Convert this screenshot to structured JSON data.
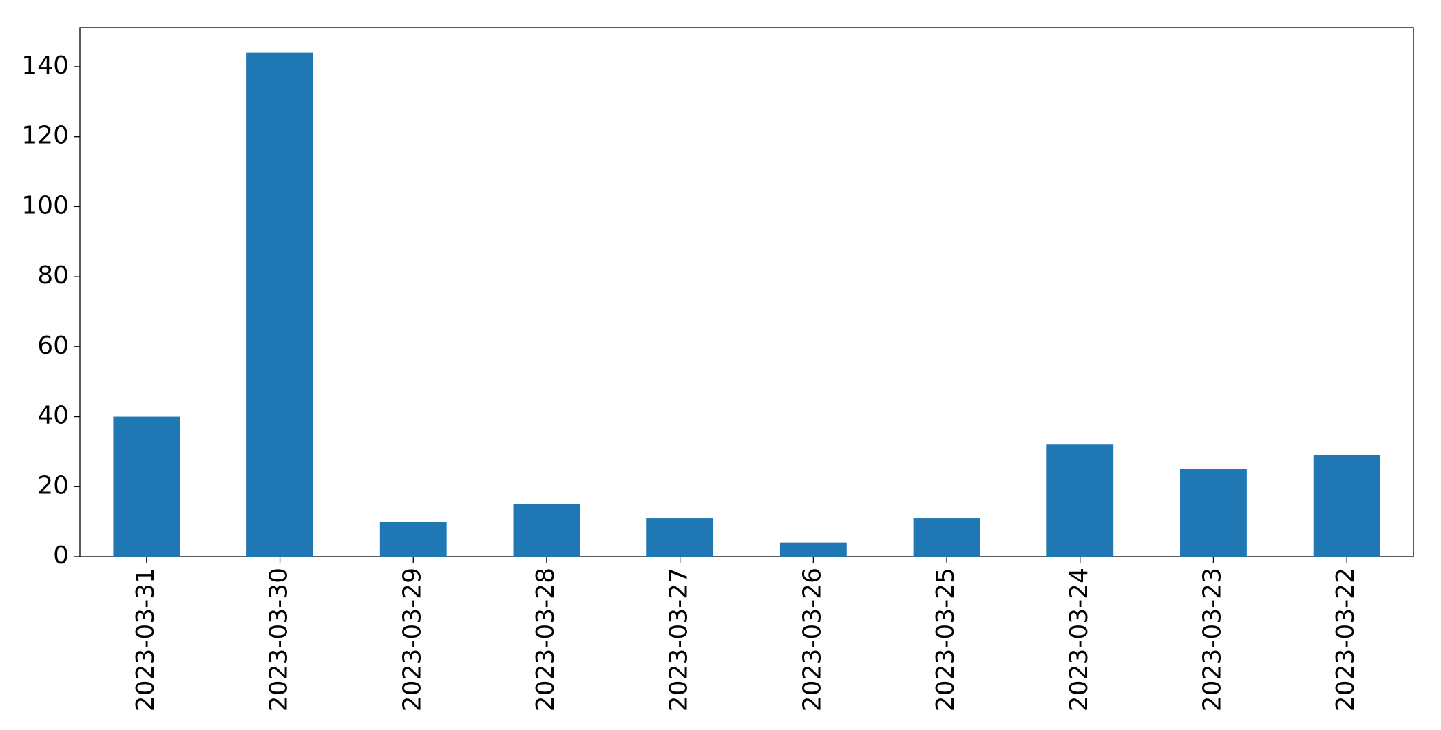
{
  "chart_data": {
    "type": "bar",
    "categories": [
      "2023-03-31",
      "2023-03-30",
      "2023-03-29",
      "2023-03-28",
      "2023-03-27",
      "2023-03-26",
      "2023-03-25",
      "2023-03-24",
      "2023-03-23",
      "2023-03-22"
    ],
    "values": [
      40,
      144,
      10,
      15,
      11,
      4,
      11,
      32,
      25,
      29
    ],
    "color": "#1f77b4",
    "ylim": [
      0,
      151.2
    ],
    "yticks": [
      0,
      20,
      40,
      60,
      80,
      100,
      120,
      140
    ],
    "grid": false
  }
}
